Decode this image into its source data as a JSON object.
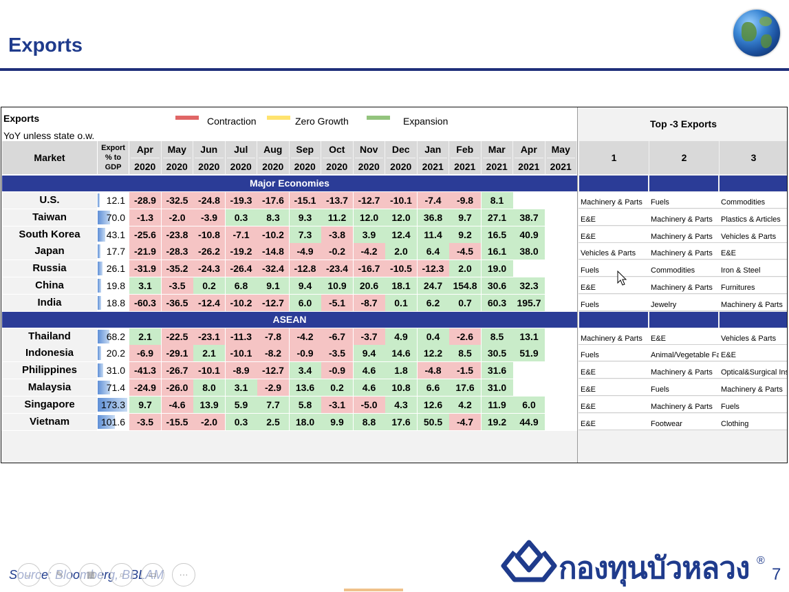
{
  "page_title": "Exports",
  "table": {
    "label": "Exports",
    "note": "YoY unless state o.w.",
    "legend": [
      {
        "label": "Contraction",
        "color": "#e06666"
      },
      {
        "label": "Zero Growth",
        "color": "#ffe36e"
      },
      {
        "label": "Expansion",
        "color": "#93c47d"
      }
    ],
    "market_header": "Market",
    "gdp_header": [
      "Export",
      "% to",
      "GDP"
    ],
    "top3_header": "Top -3 Exports",
    "rank_headers": [
      "1",
      "2",
      "3"
    ],
    "months": [
      {
        "m": "Apr",
        "y": "2020"
      },
      {
        "m": "May",
        "y": "2020"
      },
      {
        "m": "Jun",
        "y": "2020"
      },
      {
        "m": "Jul",
        "y": "2020"
      },
      {
        "m": "Aug",
        "y": "2020"
      },
      {
        "m": "Sep",
        "y": "2020"
      },
      {
        "m": "Oct",
        "y": "2020"
      },
      {
        "m": "Nov",
        "y": "2020"
      },
      {
        "m": "Dec",
        "y": "2020"
      },
      {
        "m": "Jan",
        "y": "2021"
      },
      {
        "m": "Feb",
        "y": "2021"
      },
      {
        "m": "Mar",
        "y": "2021"
      },
      {
        "m": "Apr",
        "y": "2021"
      },
      {
        "m": "May",
        "y": "2021"
      }
    ],
    "groups": [
      {
        "name": "Major Economies",
        "rows": [
          {
            "market": "U.S.",
            "gdp": "12.1",
            "values": [
              "-28.9",
              "-32.5",
              "-24.8",
              "-19.3",
              "-17.6",
              "-15.1",
              "-13.7",
              "-12.7",
              "-10.1",
              "-7.4",
              "-9.8",
              "8.1",
              "",
              ""
            ],
            "top3": [
              "Machinery & Parts",
              "Fuels",
              "Commodities"
            ]
          },
          {
            "market": "Taiwan",
            "gdp": "70.0",
            "values": [
              "-1.3",
              "-2.0",
              "-3.9",
              "0.3",
              "8.3",
              "9.3",
              "11.2",
              "12.0",
              "12.0",
              "36.8",
              "9.7",
              "27.1",
              "38.7",
              ""
            ],
            "top3": [
              "E&E",
              "Machinery & Parts",
              "Plastics & Articles"
            ]
          },
          {
            "market": "South Korea",
            "gdp": "43.1",
            "values": [
              "-25.6",
              "-23.8",
              "-10.8",
              "-7.1",
              "-10.2",
              "7.3",
              "-3.8",
              "3.9",
              "12.4",
              "11.4",
              "9.2",
              "16.5",
              "40.9",
              ""
            ],
            "top3": [
              "E&E",
              "Machinery & Parts",
              "Vehicles & Parts"
            ]
          },
          {
            "market": "Japan",
            "gdp": "17.7",
            "values": [
              "-21.9",
              "-28.3",
              "-26.2",
              "-19.2",
              "-14.8",
              "-4.9",
              "-0.2",
              "-4.2",
              "2.0",
              "6.4",
              "-4.5",
              "16.1",
              "38.0",
              ""
            ],
            "top3": [
              "Vehicles & Parts",
              "Machinery & Parts",
              "E&E"
            ]
          },
          {
            "market": "Russia",
            "gdp": "26.1",
            "values": [
              "-31.9",
              "-35.2",
              "-24.3",
              "-26.4",
              "-32.4",
              "-12.8",
              "-23.4",
              "-16.7",
              "-10.5",
              "-12.3",
              "2.0",
              "19.0",
              "",
              ""
            ],
            "top3": [
              "Fuels",
              "Commodities",
              "Iron & Steel"
            ]
          },
          {
            "market": "China",
            "gdp": "19.8",
            "values": [
              "3.1",
              "-3.5",
              "0.2",
              "6.8",
              "9.1",
              "9.4",
              "10.9",
              "20.6",
              "18.1",
              "24.7",
              "154.8",
              "30.6",
              "32.3",
              ""
            ],
            "top3": [
              "E&E",
              "Machinery & Parts",
              "Furnitures"
            ]
          },
          {
            "market": "India",
            "gdp": "18.8",
            "values": [
              "-60.3",
              "-36.5",
              "-12.4",
              "-10.2",
              "-12.7",
              "6.0",
              "-5.1",
              "-8.7",
              "0.1",
              "6.2",
              "0.7",
              "60.3",
              "195.7",
              ""
            ],
            "top3": [
              "Fuels",
              "Jewelry",
              "Machinery & Parts"
            ]
          }
        ]
      },
      {
        "name": "ASEAN",
        "rows": [
          {
            "market": "Thailand",
            "gdp": "68.2",
            "values": [
              "2.1",
              "-22.5",
              "-23.1",
              "-11.3",
              "-7.8",
              "-4.2",
              "-6.7",
              "-3.7",
              "4.9",
              "0.4",
              "-2.6",
              "8.5",
              "13.1",
              ""
            ],
            "top3": [
              "Machinery & Parts",
              "E&E",
              "Vehicles & Parts"
            ]
          },
          {
            "market": "Indonesia",
            "gdp": "20.2",
            "values": [
              "-6.9",
              "-29.1",
              "2.1",
              "-10.1",
              "-8.2",
              "-0.9",
              "-3.5",
              "9.4",
              "14.6",
              "12.2",
              "8.5",
              "30.5",
              "51.9",
              ""
            ],
            "top3": [
              "Fuels",
              "Animal/Vegetable Fats",
              "E&E"
            ]
          },
          {
            "market": "Philippines",
            "gdp": "31.0",
            "values": [
              "-41.3",
              "-26.7",
              "-10.1",
              "-8.9",
              "-12.7",
              "3.4",
              "-0.9",
              "4.6",
              "1.8",
              "-4.8",
              "-1.5",
              "31.6",
              "",
              ""
            ],
            "top3": [
              "E&E",
              "Machinery & Parts",
              "Optical&Surgical Instruments"
            ]
          },
          {
            "market": "Malaysia",
            "gdp": "71.4",
            "values": [
              "-24.9",
              "-26.0",
              "8.0",
              "3.1",
              "-2.9",
              "13.6",
              "0.2",
              "4.6",
              "10.8",
              "6.6",
              "17.6",
              "31.0",
              "",
              ""
            ],
            "top3": [
              "E&E",
              "Fuels",
              "Machinery & Parts"
            ]
          },
          {
            "market": "Singapore",
            "gdp": "173.3",
            "values": [
              "9.7",
              "-4.6",
              "13.9",
              "5.9",
              "7.7",
              "5.8",
              "-3.1",
              "-5.0",
              "4.3",
              "12.6",
              "4.2",
              "11.9",
              "6.0",
              ""
            ],
            "top3": [
              "E&E",
              "Machinery & Parts",
              "Fuels"
            ]
          },
          {
            "market": "Vietnam",
            "gdp": "101.6",
            "values": [
              "-3.5",
              "-15.5",
              "-2.0",
              "0.3",
              "2.5",
              "18.0",
              "9.9",
              "8.8",
              "17.6",
              "50.5",
              "-4.7",
              "19.2",
              "44.9",
              ""
            ],
            "top3": [
              "E&E",
              "Footwear",
              "Clothing"
            ]
          }
        ]
      }
    ]
  },
  "source": "Source: Bloomberg, BBLAM",
  "brand": {
    "name": "กองทุนบัวหลวง",
    "reg": "®"
  },
  "page_number": "7",
  "toolbar_glyphs": [
    "←",
    "✎",
    "▦",
    "⌕",
    "▭",
    "···"
  ]
}
